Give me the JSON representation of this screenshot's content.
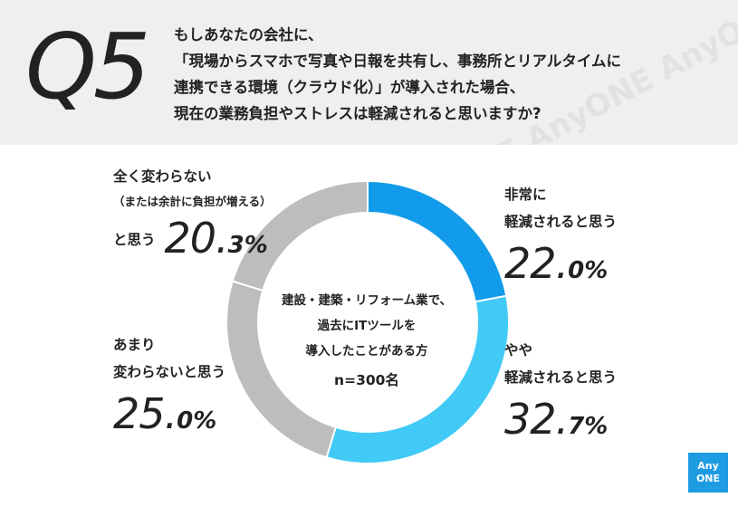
{
  "header": {
    "q_label": "Q5",
    "question_lines": [
      "もしあなたの会社に、",
      "「現場からスマホで写真や日報を共有し、事務所とリアルタイムに",
      "連携できる環境（クラウド化）」が導入された場合、",
      "現在の業務負担やストレスは軽減されると思いますか?"
    ],
    "watermark": "AnyONE AnyONE AnyONE"
  },
  "center": {
    "lines": [
      "建設・建築・リフォーム業で、",
      "過去にITツールを",
      "導入したことがある方"
    ],
    "n": "n=300名"
  },
  "chart_data": {
    "type": "pie",
    "donut": true,
    "categories": [
      "非常に軽減されると思う",
      "やや軽減されると思う",
      "あまり変わらないと思う",
      "全く変わらない（または余計に負担が増える）と思う"
    ],
    "values": [
      22.0,
      32.7,
      25.0,
      20.3
    ],
    "colors": [
      "#129bea",
      "#41caf6",
      "#bdbdbd",
      "#bdbdbd"
    ],
    "unit": "%"
  },
  "labels": [
    {
      "lines": [
        "非常に",
        "軽減されると思う"
      ],
      "int": "22.",
      "dec": "0%"
    },
    {
      "lines": [
        "やや",
        "軽減されると思う"
      ],
      "int": "32.",
      "dec": "7%"
    },
    {
      "lines": [
        "あまり",
        "変わらないと思う"
      ],
      "int": "25.",
      "dec": "0%"
    },
    {
      "lines": [
        "全く変わらない",
        "（または余計に負担が増える）",
        "と思う"
      ],
      "int": "20.",
      "dec": "3%"
    }
  ],
  "logo": {
    "line1": "Any",
    "line2": "ONE",
    "color": "#1d9be3"
  }
}
